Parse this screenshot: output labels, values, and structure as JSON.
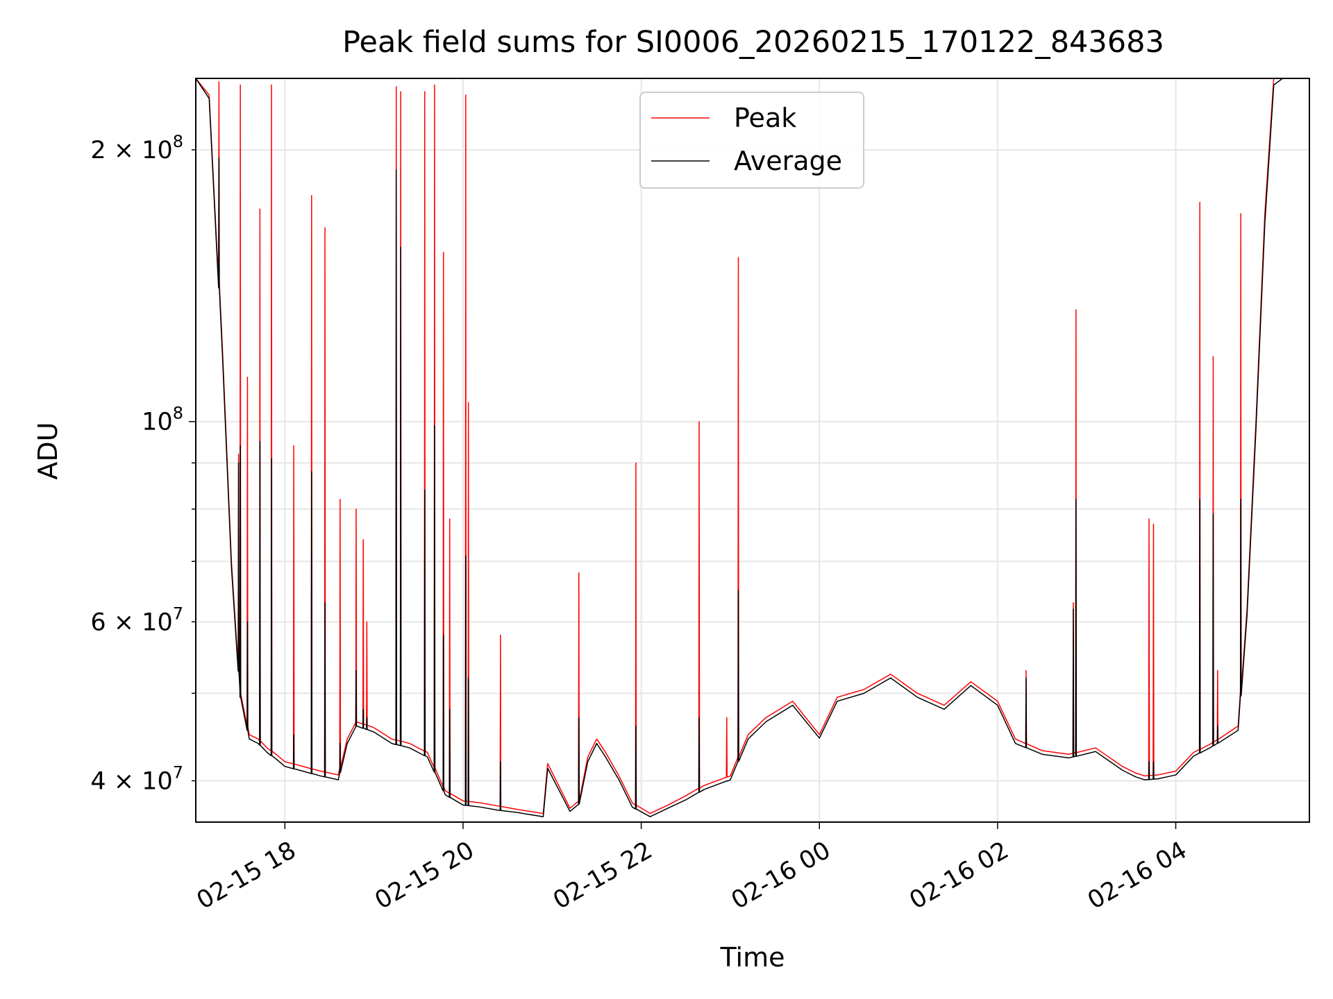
{
  "chart_data": {
    "type": "line",
    "title": "Peak field sums for SI0006_20260215_170122_843683",
    "xlabel": "Time",
    "ylabel": "ADU",
    "yscale": "log",
    "xlim": [
      17.0,
      29.5
    ],
    "ylim": [
      36000000,
      240000000
    ],
    "grid": true,
    "legend": {
      "location": "upper-center",
      "entries": [
        "Peak",
        "Average"
      ]
    },
    "x_ticks": [
      {
        "value": 18,
        "label": "02-15 18"
      },
      {
        "value": 20,
        "label": "02-15 20"
      },
      {
        "value": 22,
        "label": "02-15 22"
      },
      {
        "value": 24,
        "label": "02-16 00"
      },
      {
        "value": 26,
        "label": "02-16 02"
      },
      {
        "value": 28,
        "label": "02-16 04"
      }
    ],
    "y_major_ticks": [
      {
        "value": 100000000,
        "mantissa": "",
        "exponent": "8"
      }
    ],
    "y_minor_labelled_ticks": [
      {
        "value": 40000000,
        "mantissa": "4",
        "exponent": "7"
      },
      {
        "value": 60000000,
        "mantissa": "6",
        "exponent": "7"
      },
      {
        "value": 200000000,
        "mantissa": "2",
        "exponent": "8"
      }
    ],
    "y_minor_unlabelled_ticks": [
      50000000,
      70000000,
      80000000,
      90000000
    ],
    "series": [
      {
        "name": "Peak",
        "color": "#ff0000",
        "x": [
          17.0,
          17.15,
          17.3,
          17.4,
          17.5,
          17.6,
          17.7,
          17.8,
          17.9,
          18.0,
          18.2,
          18.4,
          18.6,
          18.7,
          18.8,
          19.0,
          19.2,
          19.4,
          19.6,
          19.8,
          20.0,
          20.2,
          20.4,
          20.6,
          20.9,
          20.95,
          21.2,
          21.3,
          21.4,
          21.5,
          21.6,
          21.75,
          21.9,
          22.1,
          22.3,
          22.5,
          22.7,
          23.0,
          23.2,
          23.4,
          23.7,
          24.0,
          24.2,
          24.5,
          24.8,
          25.1,
          25.4,
          25.7,
          26.0,
          26.2,
          26.5,
          26.8,
          27.1,
          27.4,
          27.55,
          27.65,
          27.8,
          28.0,
          28.2,
          28.4,
          28.7,
          28.8,
          28.9,
          29.0,
          29.1,
          29.2,
          29.3,
          29.5
        ],
        "y": [
          240000000,
          230000000,
          120000000,
          70000000,
          50000000,
          45000000,
          44500000,
          43500000,
          42800000,
          42000000,
          41500000,
          41000000,
          40600000,
          44500000,
          46500000,
          45800000,
          44500000,
          44000000,
          43000000,
          39000000,
          38000000,
          37800000,
          37500000,
          37200000,
          36800000,
          41800000,
          37300000,
          38000000,
          42500000,
          44500000,
          43000000,
          40500000,
          37800000,
          36800000,
          37600000,
          38500000,
          39500000,
          40500000,
          45000000,
          47000000,
          49000000,
          45000000,
          49500000,
          50500000,
          52500000,
          50000000,
          48500000,
          51500000,
          49000000,
          44500000,
          43200000,
          42800000,
          43500000,
          41500000,
          40800000,
          40500000,
          40600000,
          41000000,
          43000000,
          44000000,
          46000000,
          62000000,
          100000000,
          170000000,
          240000000,
          240000000,
          240000000,
          240000000
        ]
      },
      {
        "name": "Average",
        "color": "#000000",
        "x": [
          17.0,
          17.15,
          17.3,
          17.4,
          17.5,
          17.6,
          17.7,
          17.8,
          17.9,
          18.0,
          18.2,
          18.4,
          18.6,
          18.7,
          18.8,
          19.0,
          19.2,
          19.4,
          19.6,
          19.8,
          20.0,
          20.2,
          20.4,
          20.6,
          20.9,
          20.95,
          21.2,
          21.3,
          21.4,
          21.5,
          21.6,
          21.75,
          21.9,
          22.1,
          22.3,
          22.5,
          22.7,
          23.0,
          23.2,
          23.4,
          23.7,
          24.0,
          24.2,
          24.5,
          24.8,
          25.1,
          25.4,
          25.7,
          26.0,
          26.2,
          26.5,
          26.8,
          27.1,
          27.4,
          27.55,
          27.65,
          27.8,
          28.0,
          28.2,
          28.4,
          28.7,
          28.8,
          28.9,
          29.0,
          29.1,
          29.2,
          29.3,
          29.5
        ],
        "y": [
          240000000,
          228000000,
          118000000,
          69000000,
          49500000,
          44500000,
          44000000,
          43000000,
          42300000,
          41500000,
          41000000,
          40500000,
          40100000,
          44000000,
          46000000,
          45300000,
          44000000,
          43500000,
          42500000,
          38600000,
          37600000,
          37400000,
          37100000,
          36900000,
          36500000,
          41300000,
          37000000,
          37700000,
          42000000,
          44000000,
          42500000,
          40100000,
          37400000,
          36500000,
          37300000,
          38100000,
          39100000,
          40100000,
          44500000,
          46500000,
          48500000,
          44600000,
          49000000,
          50000000,
          52000000,
          49500000,
          48000000,
          51000000,
          48500000,
          44000000,
          42800000,
          42400000,
          43100000,
          41100000,
          40400000,
          40100000,
          40200000,
          40600000,
          42600000,
          43600000,
          45500000,
          61000000,
          98000000,
          166000000,
          236000000,
          240000000,
          240000000,
          240000000
        ]
      }
    ],
    "spikes": [
      {
        "x": 17.26,
        "peak": 238000000,
        "average": 196000000
      },
      {
        "x": 17.48,
        "peak": 92000000,
        "average": 90000000
      },
      {
        "x": 17.5,
        "peak": 236000000,
        "average": 94000000
      },
      {
        "x": 17.58,
        "peak": 112000000,
        "average": 60000000
      },
      {
        "x": 17.72,
        "peak": 172000000,
        "average": 95000000
      },
      {
        "x": 17.85,
        "peak": 236000000,
        "average": 91000000
      },
      {
        "x": 18.1,
        "peak": 94000000,
        "average": 45000000
      },
      {
        "x": 18.3,
        "peak": 178000000,
        "average": 88000000
      },
      {
        "x": 18.45,
        "peak": 164000000,
        "average": 63000000
      },
      {
        "x": 18.62,
        "peak": 82000000,
        "average": 44000000
      },
      {
        "x": 18.8,
        "peak": 80000000,
        "average": 53000000
      },
      {
        "x": 18.88,
        "peak": 74000000,
        "average": 48000000
      },
      {
        "x": 18.92,
        "peak": 60000000,
        "average": 47000000
      },
      {
        "x": 19.25,
        "peak": 235000000,
        "average": 190000000
      },
      {
        "x": 19.3,
        "peak": 232000000,
        "average": 156000000
      },
      {
        "x": 19.57,
        "peak": 232000000,
        "average": 84000000
      },
      {
        "x": 19.68,
        "peak": 236000000,
        "average": 99000000
      },
      {
        "x": 19.78,
        "peak": 154000000,
        "average": 58000000
      },
      {
        "x": 19.85,
        "peak": 78000000,
        "average": 48000000
      },
      {
        "x": 20.03,
        "peak": 230000000,
        "average": 71000000
      },
      {
        "x": 20.06,
        "peak": 105000000,
        "average": 52000000
      },
      {
        "x": 20.42,
        "peak": 58000000,
        "average": 42000000
      },
      {
        "x": 21.3,
        "peak": 68000000,
        "average": 47000000
      },
      {
        "x": 21.94,
        "peak": 90000000,
        "average": 46000000
      },
      {
        "x": 22.65,
        "peak": 100000000,
        "average": 47000000
      },
      {
        "x": 22.96,
        "peak": 47000000,
        "average": 40000000
      },
      {
        "x": 23.09,
        "peak": 152000000,
        "average": 65000000
      },
      {
        "x": 26.32,
        "peak": 53000000,
        "average": 52000000
      },
      {
        "x": 26.85,
        "peak": 63000000,
        "average": 62000000
      },
      {
        "x": 26.88,
        "peak": 133000000,
        "average": 82000000
      },
      {
        "x": 27.7,
        "peak": 78000000,
        "average": 42000000
      },
      {
        "x": 27.75,
        "peak": 77000000,
        "average": 42000000
      },
      {
        "x": 28.27,
        "peak": 175000000,
        "average": 82000000
      },
      {
        "x": 28.42,
        "peak": 118000000,
        "average": 79000000
      },
      {
        "x": 28.47,
        "peak": 53000000,
        "average": 46000000
      },
      {
        "x": 28.73,
        "peak": 170000000,
        "average": 82000000
      }
    ]
  }
}
